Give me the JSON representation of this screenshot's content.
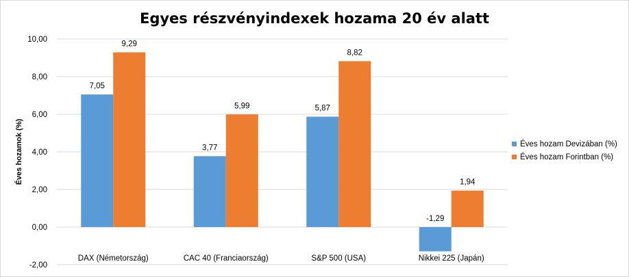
{
  "chart_data": {
    "type": "bar",
    "title": "Egyes részvényindexek hozama 20 év alatt",
    "ylabel": "Éves hozamok (%)",
    "xlabel": "",
    "categories": [
      "DAX (Németország)",
      "CAC 40 (Franciaország)",
      "S&P 500 (USA)",
      "Nikkei 225 (Japán)"
    ],
    "series": [
      {
        "name": "Éves hozam Devizában (%)",
        "values": [
          7.05,
          3.77,
          5.87,
          -1.29
        ],
        "color": "#5b9bd5"
      },
      {
        "name": "Éves hozam Forintban (%)",
        "values": [
          9.29,
          5.99,
          8.82,
          1.94
        ],
        "color": "#ed7d31"
      }
    ],
    "data_labels": [
      [
        "7,05",
        "3,77",
        "5,87",
        "-1,29"
      ],
      [
        "9,29",
        "5,99",
        "8,82",
        "1,94"
      ]
    ],
    "ylim": [
      -2,
      10
    ],
    "yticks": [
      -2,
      0,
      2,
      4,
      6,
      8,
      10
    ],
    "ytick_labels": [
      "-2,00",
      "0,00",
      "2,00",
      "4,00",
      "6,00",
      "8,00",
      "10,00"
    ],
    "grid": true,
    "legend_position": "right"
  }
}
